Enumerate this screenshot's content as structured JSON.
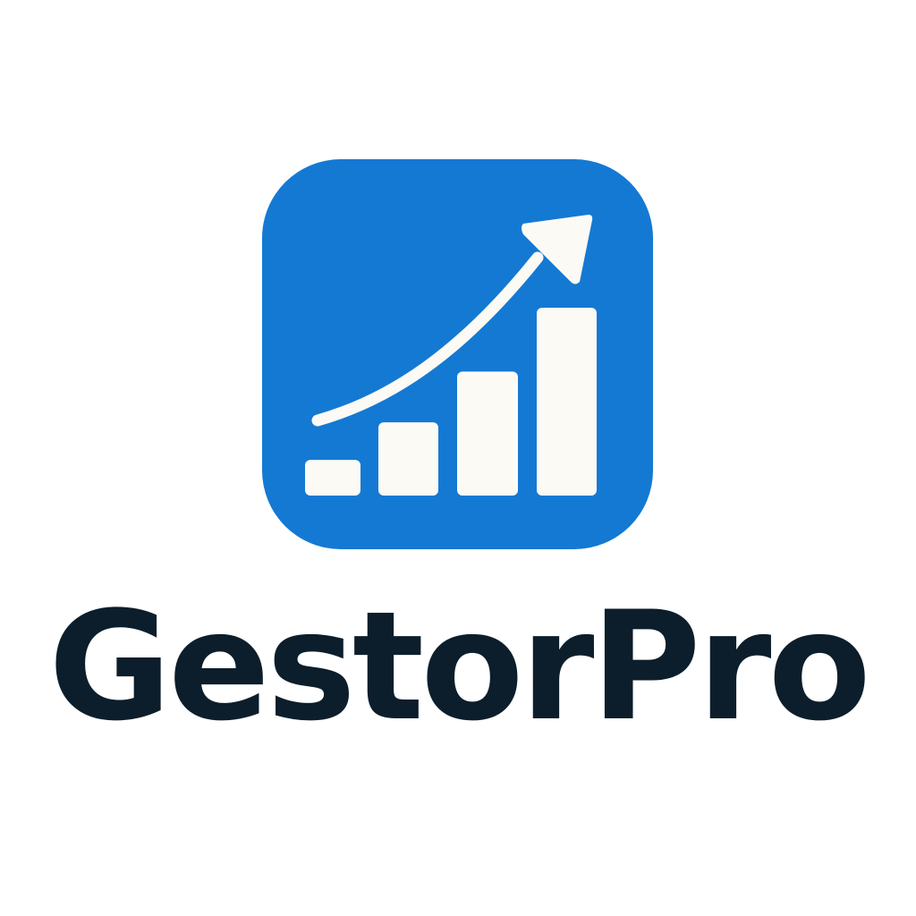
{
  "brand": {
    "name": "GestorPro",
    "icon_name": "growth-chart-icon",
    "colors": {
      "icon_background": "#1479d3",
      "icon_foreground": "#fbfaf5",
      "wordmark": "#0c1e2b",
      "page_background": "#ffffff"
    },
    "icon_bars": [
      {
        "name": "bar-1",
        "level": 0.19
      },
      {
        "name": "bar-2",
        "level": 0.39
      },
      {
        "name": "bar-3",
        "level": 0.66
      },
      {
        "name": "bar-4",
        "level": 1.0
      }
    ]
  }
}
